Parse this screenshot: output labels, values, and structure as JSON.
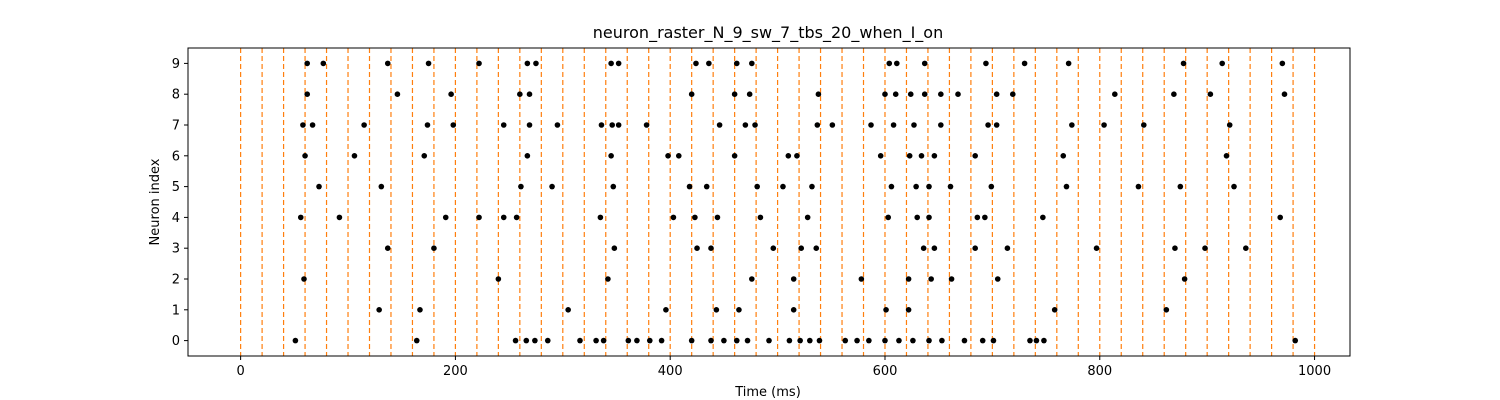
{
  "chart_data": {
    "type": "scatter",
    "title": "neuron_raster_N_9_sw_7_tbs_20_when_I_on",
    "xlabel": "Time (ms)",
    "ylabel": "Neuron index",
    "xlim": [
      -49,
      1033
    ],
    "ylim": [
      -0.5,
      9.5
    ],
    "x_ticks": [
      0,
      200,
      400,
      600,
      800,
      1000
    ],
    "y_ticks": [
      0,
      1,
      2,
      3,
      4,
      5,
      6,
      7,
      8,
      9
    ],
    "grid": false,
    "marker_color": "#000000",
    "stimulus_line_color": "#ff7f0e",
    "stimulus_times": [
      0,
      20,
      40,
      60,
      80,
      100,
      120,
      140,
      160,
      180,
      200,
      220,
      240,
      260,
      280,
      300,
      320,
      340,
      360,
      380,
      400,
      420,
      440,
      460,
      480,
      500,
      520,
      540,
      560,
      580,
      600,
      620,
      640,
      660,
      680,
      700,
      720,
      740,
      760,
      780,
      800,
      820,
      840,
      860,
      880,
      900,
      920,
      940,
      960,
      980,
      1000
    ],
    "spikes": [
      {
        "neuron": 0,
        "times": [
          51,
          164,
          256,
          266,
          274,
          286,
          316,
          331,
          338,
          361,
          369,
          381,
          392,
          420,
          438,
          450,
          462,
          472,
          492,
          511,
          521,
          530,
          539,
          563,
          574,
          585,
          600,
          613,
          626,
          641,
          653,
          674,
          691,
          701,
          735,
          741,
          748,
          982
        ]
      },
      {
        "neuron": 1,
        "times": [
          129,
          167,
          305,
          396,
          443,
          464,
          515,
          601,
          622,
          758,
          862
        ]
      },
      {
        "neuron": 2,
        "times": [
          59,
          240,
          342,
          476,
          515,
          578,
          622,
          643,
          662,
          705,
          879
        ]
      },
      {
        "neuron": 3,
        "times": [
          137,
          180,
          348,
          425,
          438,
          496,
          522,
          536,
          636,
          646,
          684,
          714,
          797,
          870,
          898,
          936
        ]
      },
      {
        "neuron": 4,
        "times": [
          56,
          92,
          191,
          222,
          245,
          257,
          335,
          403,
          423,
          444,
          484,
          528,
          603,
          630,
          641,
          686,
          693,
          747,
          968
        ]
      },
      {
        "neuron": 5,
        "times": [
          73,
          131,
          261,
          290,
          347,
          418,
          434,
          481,
          505,
          532,
          606,
          629,
          641,
          661,
          699,
          769,
          836,
          875,
          925
        ]
      },
      {
        "neuron": 6,
        "times": [
          60,
          106,
          171,
          267,
          345,
          398,
          408,
          460,
          510,
          518,
          596,
          623,
          634,
          646,
          684,
          766,
          918
        ]
      },
      {
        "neuron": 7,
        "times": [
          58,
          67,
          115,
          174,
          198,
          245,
          269,
          295,
          336,
          346,
          352,
          378,
          446,
          470,
          479,
          537,
          551,
          587,
          608,
          627,
          652,
          696,
          704,
          774,
          804,
          841,
          921
        ]
      },
      {
        "neuron": 8,
        "times": [
          62,
          146,
          196,
          260,
          269,
          420,
          460,
          474,
          538,
          600,
          610,
          624,
          637,
          652,
          668,
          704,
          719,
          814,
          869,
          903,
          972
        ]
      },
      {
        "neuron": 9,
        "times": [
          62,
          77,
          137,
          175,
          222,
          267,
          275,
          345,
          352,
          424,
          436,
          462,
          476,
          604,
          611,
          637,
          694,
          730,
          771,
          878,
          914,
          970
        ]
      }
    ]
  }
}
